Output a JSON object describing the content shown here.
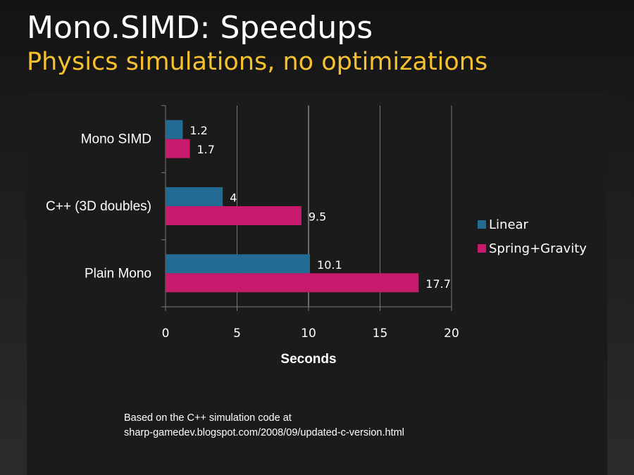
{
  "slide": {
    "title": "Mono.SIMD:  Speedups",
    "subtitle": "Physics simulations, no optimizations",
    "footnote_line1": "Based on the C++ simulation code at",
    "footnote_line2": "sharp-gamedev.blogspot.com/2008/09/updated-c-version.html"
  },
  "colors": {
    "title": "#ffffff",
    "subtitle": "#f6c02e",
    "linear": "#236b93",
    "spring_gravity": "#c81a6d",
    "grid": "#7a7a7a"
  },
  "chart_data": {
    "type": "bar",
    "orientation": "horizontal",
    "categories": [
      "Mono SIMD",
      "C++ (3D doubles)",
      "Plain Mono"
    ],
    "series": [
      {
        "name": "Linear",
        "values": [
          1.2,
          4,
          10.1
        ]
      },
      {
        "name": "Spring+Gravity",
        "values": [
          1.7,
          9.5,
          17.7
        ]
      }
    ],
    "data_labels": [
      [
        "1.2",
        "4",
        "10.1"
      ],
      [
        "1.7",
        "9.5",
        "17.7"
      ]
    ],
    "title": "",
    "xlabel": "Seconds",
    "ylabel": "",
    "xlim": [
      0,
      20
    ],
    "x_ticks": [
      "0",
      "5",
      "10",
      "15",
      "20"
    ],
    "grid": "vertical",
    "legend_position": "right"
  }
}
